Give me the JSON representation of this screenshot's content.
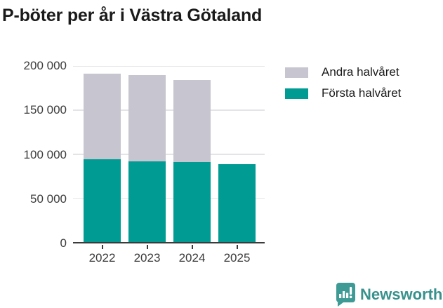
{
  "title": "P-böter per år i Västra Götaland",
  "chart_data": {
    "type": "bar",
    "stacked": true,
    "title": "P-böter per år i Västra Götaland",
    "categories": [
      "2022",
      "2023",
      "2024",
      "2025"
    ],
    "series": [
      {
        "name": "Första halvåret",
        "color": "#009c94",
        "values": [
          93500,
          91200,
          90400,
          88000
        ]
      },
      {
        "name": "Andra halvåret",
        "color": "#c7c6d0",
        "values": [
          96000,
          96800,
          92300,
          0
        ]
      }
    ],
    "ylim": [
      0,
      200000
    ],
    "yticks": [
      0,
      50000,
      100000,
      150000,
      200000
    ],
    "ytick_labels": [
      "0",
      "50 000",
      "100 000",
      "150 000",
      "200 000"
    ],
    "xlabel": "",
    "ylabel": "",
    "grid": true,
    "legend_position": "top-right",
    "legend": [
      {
        "label": "Andra halvåret",
        "color": "#c7c6d0"
      },
      {
        "label": "Första halvåret",
        "color": "#009c94"
      }
    ]
  },
  "branding": {
    "name": "Newsworthy",
    "icon": "newsworthy-bar-chart-bubble-icon",
    "icon_color": "#3d9a94",
    "text_color": "#37918c"
  },
  "colors": {
    "background": "#ffffff",
    "title_text": "#1a1a1a",
    "axis_text": "#3c3c3c",
    "axis_line": "#3b3b3b",
    "gridline": "#e4e4e8"
  }
}
